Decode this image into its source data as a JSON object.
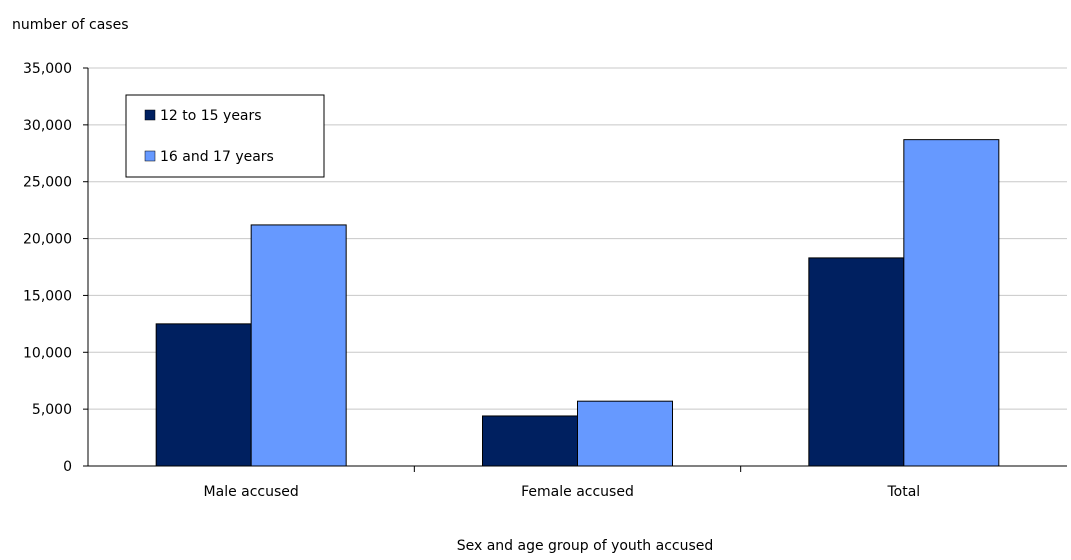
{
  "chart_data": {
    "type": "bar",
    "title": "",
    "ylabel": "number of cases",
    "xlabel": "Sex and age group of youth accused",
    "categories": [
      "Male accused",
      "Female accused",
      "Total"
    ],
    "series": [
      {
        "name": "12 to 15 years",
        "values": [
          12500,
          4400,
          18300
        ],
        "color": "#002060"
      },
      {
        "name": "16 and 17 years",
        "values": [
          21200,
          5700,
          28700
        ],
        "color": "#6699ff"
      }
    ],
    "ylim": [
      0,
      35000
    ],
    "yticks": [
      0,
      5000,
      10000,
      15000,
      20000,
      25000,
      30000,
      35000
    ],
    "ytick_labels": [
      "0",
      "5,000",
      "10,000",
      "15,000",
      "20,000",
      "25,000",
      "30,000",
      "35,000"
    ],
    "grid": true,
    "legend_position": "top-left"
  }
}
